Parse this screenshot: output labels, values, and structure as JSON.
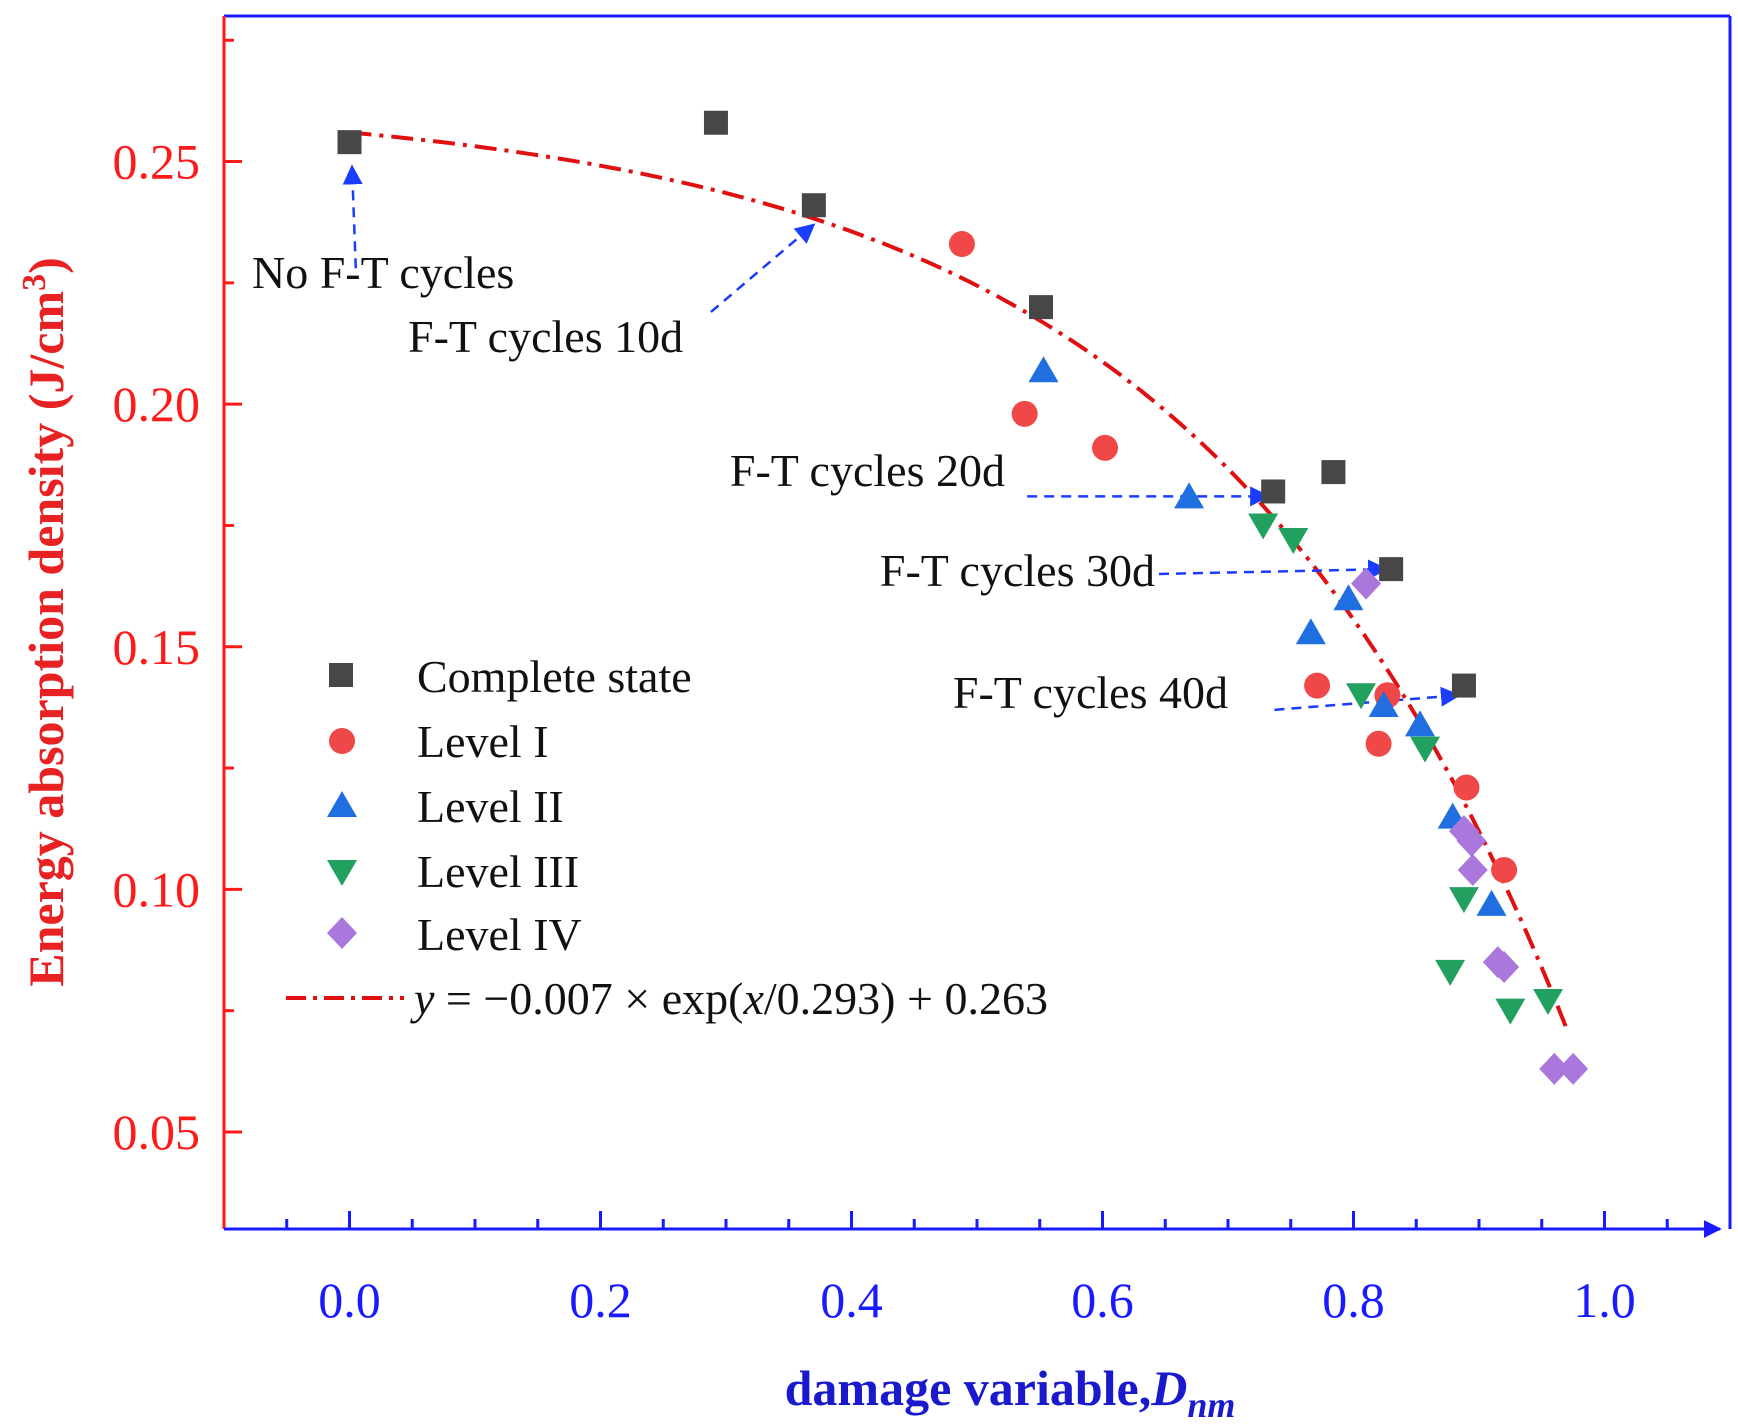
{
  "chart_data": {
    "type": "scatter",
    "xlabel_main": "damage variable,",
    "xlabel_sub": "D",
    "xlabel_subscript": "nm",
    "ylabel": "Energy absorption density (J/cm",
    "ylabel_sup": "3",
    "ylabel_close": ")",
    "xlim": [
      -0.1,
      1.1
    ],
    "ylim": [
      0.03,
      0.28
    ],
    "xticks": [
      0.0,
      0.2,
      0.4,
      0.6,
      0.8,
      1.0
    ],
    "xtick_labels": [
      "0.0",
      "0.2",
      "0.4",
      "0.6",
      "0.8",
      "1.0"
    ],
    "yticks": [
      0.05,
      0.1,
      0.15,
      0.2,
      0.25
    ],
    "ytick_labels": [
      "0.05",
      "0.10",
      "0.15",
      "0.20",
      "0.25"
    ],
    "colors": {
      "x_axis": "#1a1aff",
      "y_axis": "#ff1a1a",
      "x_label": "#1a1acc",
      "y_label": "#e82222",
      "fit": "#e01010",
      "annotation_arrow": "#1a3cff"
    },
    "series": [
      {
        "name": "Complete state",
        "marker": "square",
        "color": "#474747",
        "points": [
          [
            0.0,
            0.254
          ],
          [
            0.292,
            0.258
          ],
          [
            0.37,
            0.241
          ],
          [
            0.551,
            0.22
          ],
          [
            0.736,
            0.182
          ],
          [
            0.784,
            0.186
          ],
          [
            0.83,
            0.166
          ],
          [
            0.888,
            0.142
          ]
        ]
      },
      {
        "name": "Level I",
        "marker": "circle",
        "color": "#f04848",
        "points": [
          [
            0.488,
            0.233
          ],
          [
            0.538,
            0.198
          ],
          [
            0.602,
            0.191
          ],
          [
            0.771,
            0.142
          ],
          [
            0.827,
            0.14
          ],
          [
            0.82,
            0.13
          ],
          [
            0.89,
            0.121
          ],
          [
            0.92,
            0.104
          ]
        ]
      },
      {
        "name": "Level II",
        "marker": "triangle-up",
        "color": "#1f6fe0",
        "points": [
          [
            0.553,
            0.207
          ],
          [
            0.669,
            0.181
          ],
          [
            0.766,
            0.153
          ],
          [
            0.796,
            0.16
          ],
          [
            0.824,
            0.138
          ],
          [
            0.853,
            0.134
          ],
          [
            0.879,
            0.115
          ],
          [
            0.91,
            0.097
          ]
        ]
      },
      {
        "name": "Level III",
        "marker": "triangle-down",
        "color": "#22a060",
        "points": [
          [
            0.728,
            0.175
          ],
          [
            0.752,
            0.172
          ],
          [
            0.806,
            0.14
          ],
          [
            0.857,
            0.129
          ],
          [
            0.888,
            0.098
          ],
          [
            0.877,
            0.083
          ],
          [
            0.925,
            0.075
          ],
          [
            0.955,
            0.077
          ]
        ]
      },
      {
        "name": "Level IV",
        "marker": "diamond",
        "color": "#aa77dd",
        "points": [
          [
            0.81,
            0.163
          ],
          [
            0.888,
            0.112
          ],
          [
            0.894,
            0.11
          ],
          [
            0.895,
            0.104
          ],
          [
            0.915,
            0.085
          ],
          [
            0.92,
            0.084
          ],
          [
            0.96,
            0.063
          ],
          [
            0.975,
            0.063
          ]
        ]
      }
    ],
    "fit": {
      "label_y": "y",
      "label_mid": " = −0.007 × exp(",
      "label_x": "x",
      "label_end": "/0.293) + 0.263",
      "a": -0.007,
      "t": 0.293,
      "c": 0.263,
      "x_range": [
        0.0,
        0.97
      ]
    },
    "annotations": [
      {
        "text": "No F-T cycles",
        "from": [
          0.005,
          0.228
        ],
        "to": [
          0.002,
          0.249
        ]
      },
      {
        "text": "F-T cycles 10d",
        "from": [
          0.288,
          0.219
        ],
        "to": [
          0.37,
          0.237
        ]
      },
      {
        "text": "F-T cycles 20d",
        "from": [
          0.54,
          0.181
        ],
        "to": [
          0.732,
          0.181
        ]
      },
      {
        "text": "F-T cycles 30d",
        "from": [
          0.645,
          0.165
        ],
        "to": [
          0.826,
          0.166
        ]
      },
      {
        "text": "F-T cycles 40d",
        "from": [
          0.737,
          0.137
        ],
        "to": [
          0.884,
          0.14
        ]
      }
    ]
  }
}
